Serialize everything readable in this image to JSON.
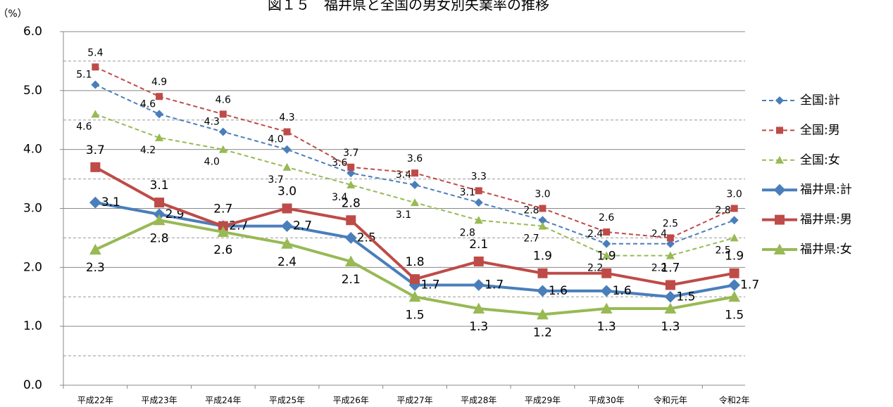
{
  "chart_data": {
    "type": "line",
    "title": "図１５　福井県と全国の男女別失業率の推移",
    "y_label": "（%）",
    "categories": [
      "平成22年",
      "平成23年",
      "平成24年",
      "平成25年",
      "平成26年",
      "平成27年",
      "平成28年",
      "平成29年",
      "平成30年",
      "令和元年",
      "令和2年"
    ],
    "ylim": [
      0,
      6
    ],
    "yticks": [
      {
        "value": 0,
        "label": "0.0"
      },
      {
        "value": 1,
        "label": "1.0"
      },
      {
        "value": 2,
        "label": "2.0"
      },
      {
        "value": 3,
        "label": "3.0"
      },
      {
        "value": 4,
        "label": "4.0"
      },
      {
        "value": 5,
        "label": "5.0"
      },
      {
        "value": 6,
        "label": "6.0"
      }
    ],
    "yminor": [
      0.5,
      1.5,
      2.5,
      3.5,
      4.5,
      5.5
    ],
    "grid": true,
    "legend": "right",
    "series": [
      {
        "name": "全国:計",
        "color": "#4a7ebb",
        "marker": "diamond",
        "dashed": true,
        "values": [
          5.1,
          4.6,
          4.3,
          4.0,
          3.6,
          3.4,
          3.1,
          2.8,
          2.4,
          2.4,
          2.8
        ],
        "value_labels": [
          "5.1",
          "4.6",
          "4.3",
          "4.0",
          "3.6",
          "3.4",
          "3.1",
          "2.8",
          "2.4",
          "2.4",
          "2.8"
        ]
      },
      {
        "name": "全国:男",
        "color": "#be4b48",
        "marker": "square",
        "dashed": true,
        "values": [
          5.4,
          4.9,
          4.6,
          4.3,
          3.7,
          3.6,
          3.3,
          3.0,
          2.6,
          2.5,
          3.0
        ],
        "value_labels": [
          "5.4",
          "4.9",
          "4.6",
          "4.3",
          "3.7",
          "3.6",
          "3.3",
          "3.0",
          "2.6",
          "2.5",
          "3.0"
        ]
      },
      {
        "name": "全国:女",
        "color": "#98b954",
        "marker": "triangle",
        "dashed": true,
        "values": [
          4.6,
          4.2,
          4.0,
          3.7,
          3.4,
          3.1,
          2.8,
          2.7,
          2.2,
          2.2,
          2.5
        ],
        "value_labels": [
          "4.6",
          "4.2",
          "4.0",
          "3.7",
          "3.4",
          "3.1",
          "2.8",
          "2.7",
          "2.2",
          "2.2",
          "2.5"
        ]
      },
      {
        "name": "福井県:計",
        "color": "#4a7ebb",
        "marker": "diamond",
        "dashed": false,
        "values": [
          3.1,
          2.9,
          2.7,
          2.7,
          2.5,
          1.7,
          1.7,
          1.6,
          1.6,
          1.5,
          1.7
        ],
        "value_labels": [
          "3.1",
          "2.9",
          "2.7",
          "2.7",
          "2.5",
          "1.7",
          "1.7",
          "1.6",
          "1.6",
          "1.5",
          "1.7"
        ]
      },
      {
        "name": "福井県:男",
        "color": "#be4b48",
        "marker": "square",
        "dashed": false,
        "values": [
          3.7,
          3.1,
          2.7,
          3.0,
          2.8,
          1.8,
          2.1,
          1.9,
          1.9,
          1.7,
          1.9
        ],
        "value_labels": [
          "3.7",
          "3.1",
          "2.7",
          "3.0",
          "2.8",
          "1.8",
          "2.1",
          "1.9",
          "1.9",
          "1.7",
          "1.9"
        ]
      },
      {
        "name": "福井県:女",
        "color": "#98b954",
        "marker": "triangle",
        "dashed": false,
        "values": [
          2.3,
          2.8,
          2.6,
          2.4,
          2.1,
          1.5,
          1.3,
          1.2,
          1.3,
          1.3,
          1.5
        ],
        "value_labels": [
          "2.3",
          "2.8",
          "2.6",
          "2.4",
          "2.1",
          "1.5",
          "1.3",
          "1.2",
          "1.3",
          "1.3",
          "1.5"
        ]
      }
    ]
  }
}
